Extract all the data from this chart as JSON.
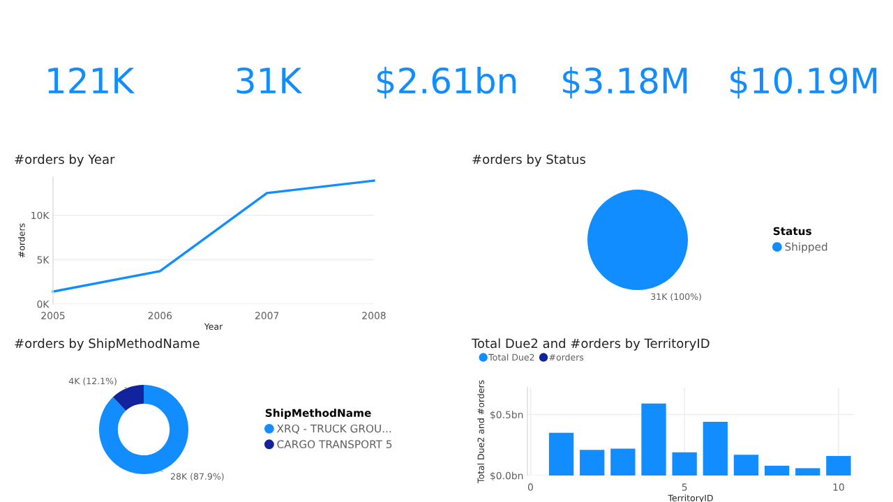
{
  "chart_data": [
    {
      "type": "other",
      "annotations": [
        "121K",
        "31K",
        "$2.61bn",
        "$3.18M",
        "$10.19M"
      ],
      "color": "#118dff"
    },
    {
      "type": "line",
      "title": "#orders by Year",
      "xlabel": "Year",
      "ylabel": "#orders",
      "x": [
        2005,
        2006,
        2007,
        2008
      ],
      "series": [
        {
          "color": "#118dff",
          "values": [
            1400,
            3700,
            12500,
            13900
          ]
        }
      ],
      "xlim": [
        2005,
        2008
      ],
      "xticks": [
        2005,
        2006,
        2007,
        2008
      ],
      "ylim": [
        0,
        14300
      ],
      "yticks": [
        {
          "value": 0,
          "label": "0K"
        },
        {
          "value": 5000,
          "label": "5K"
        },
        {
          "value": 10000,
          "label": "10K"
        }
      ],
      "grid": "y",
      "marker": "none",
      "line_style": "solid"
    },
    {
      "type": "pie",
      "title": "#orders by Status",
      "legend_title": "Status",
      "categories": [
        "Shipped"
      ],
      "values": [
        100
      ],
      "colors": [
        "#118dff"
      ],
      "value_labels": [
        "31K (100%)"
      ],
      "legend": "right"
    },
    {
      "type": "donut",
      "title": "#orders by ShipMethodName",
      "legend_title": "ShipMethodName",
      "categories": [
        "XRQ - TRUCK GROU...",
        "CARGO TRANSPORT 5"
      ],
      "values": [
        87.9,
        12.1
      ],
      "colors": [
        "#118dff",
        "#12239e"
      ],
      "value_labels": [
        "28K (87.9%)",
        "4K (12.1%)"
      ],
      "legend": "right"
    },
    {
      "type": "bar",
      "title": "Total Due2 and #orders by TerritoryID",
      "xlabel": "TerritoryID",
      "ylabel": "Total Due2 and #orders",
      "x": [
        1,
        2,
        3,
        4,
        5,
        6,
        7,
        8,
        9,
        10
      ],
      "series": [
        {
          "name": "Total Due2",
          "color": "#118dff",
          "values": [
            0.35,
            0.21,
            0.22,
            0.59,
            0.19,
            0.44,
            0.17,
            0.08,
            0.06,
            0.16
          ]
        },
        {
          "name": "#orders",
          "color": "#12239e",
          "values": [
            null,
            null,
            null,
            null,
            null,
            null,
            null,
            null,
            null,
            null
          ]
        }
      ],
      "xlim": [
        -0.1,
        10.5
      ],
      "xticks": [
        0,
        5,
        10
      ],
      "ylim": [
        0,
        0.72
      ],
      "yticks": [
        {
          "value": 0,
          "label": "$0.0bn"
        },
        {
          "value": 0.5,
          "label": "$0.5bn"
        }
      ],
      "grid": true,
      "legend": "top left"
    }
  ]
}
